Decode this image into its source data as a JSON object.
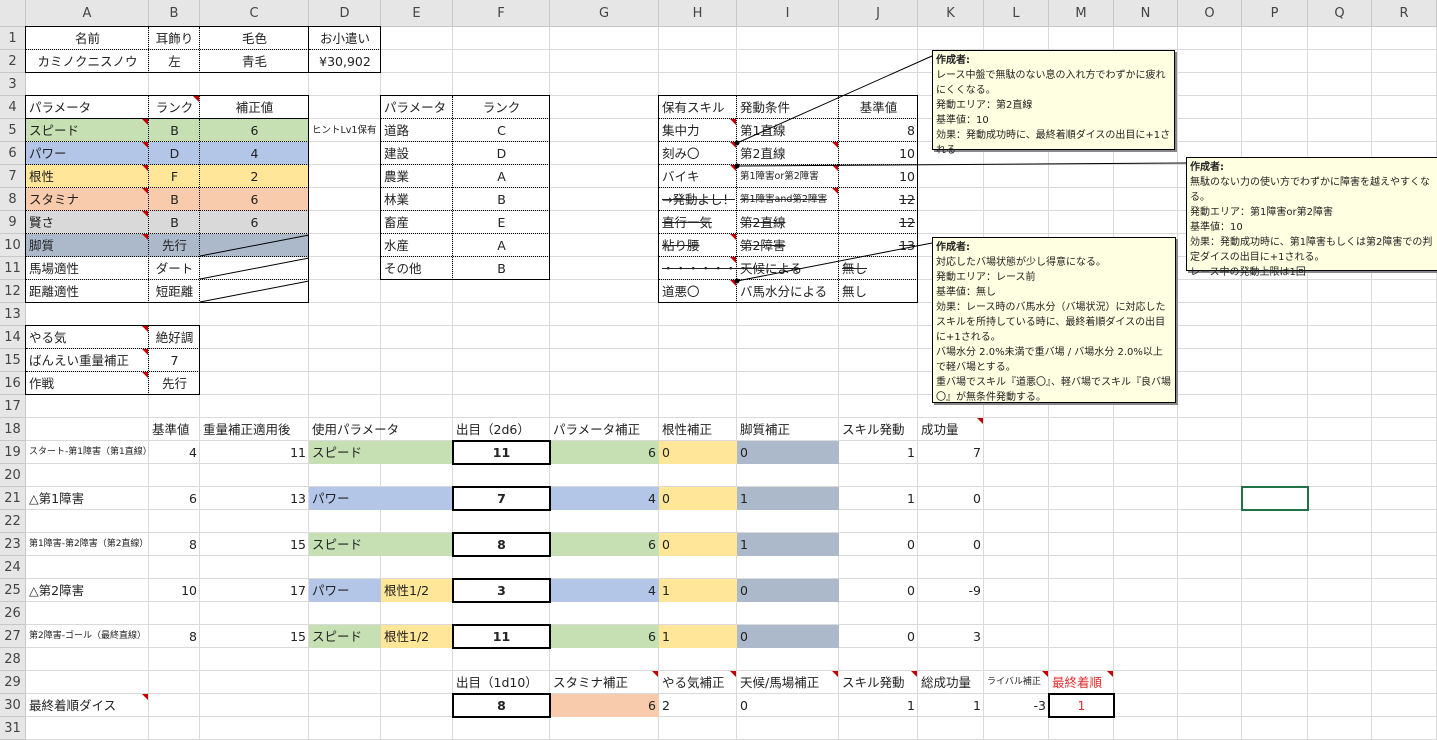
{
  "columns": [
    "A",
    "B",
    "C",
    "D",
    "E",
    "F",
    "G",
    "H",
    "I",
    "J",
    "K",
    "L",
    "M",
    "N",
    "O",
    "P",
    "Q",
    "R"
  ],
  "rows": 31,
  "fills": {
    "green": "#c6e0b4",
    "blue": "#b4c6e7",
    "yellow": "#ffe699",
    "orange": "#f8cbad",
    "gray": "#d9d9d9",
    "slate": "#acb9ca"
  },
  "selected_cell": "P21",
  "cells": [
    {
      "ref": "A1",
      "v": "名前"
    },
    {
      "ref": "B1",
      "v": "耳飾り"
    },
    {
      "ref": "C1",
      "v": "毛色"
    },
    {
      "ref": "D1",
      "v": "お小遣い"
    },
    {
      "ref": "A2",
      "v": "カミノクニスノウ"
    },
    {
      "ref": "B2",
      "v": "左"
    },
    {
      "ref": "C2",
      "v": "青毛"
    },
    {
      "ref": "D2",
      "v": "¥30,902"
    },
    {
      "ref": "A4",
      "v": "パラメータ"
    },
    {
      "ref": "B4",
      "v": "ランク"
    },
    {
      "ref": "C4",
      "v": "補正値"
    },
    {
      "ref": "A5",
      "v": "スピード",
      "fill": "green"
    },
    {
      "ref": "B5",
      "v": "B",
      "fill": "green"
    },
    {
      "ref": "C5",
      "v": "6",
      "fill": "green"
    },
    {
      "ref": "A6",
      "v": "パワー",
      "fill": "blue"
    },
    {
      "ref": "B6",
      "v": "D",
      "fill": "blue"
    },
    {
      "ref": "C6",
      "v": "4",
      "fill": "blue"
    },
    {
      "ref": "A7",
      "v": "根性",
      "fill": "yellow"
    },
    {
      "ref": "B7",
      "v": "F",
      "fill": "yellow"
    },
    {
      "ref": "C7",
      "v": "2",
      "fill": "yellow"
    },
    {
      "ref": "A8",
      "v": "スタミナ",
      "fill": "orange"
    },
    {
      "ref": "B8",
      "v": "B",
      "fill": "orange"
    },
    {
      "ref": "C8",
      "v": "6",
      "fill": "orange"
    },
    {
      "ref": "A9",
      "v": "賢さ",
      "fill": "gray"
    },
    {
      "ref": "B9",
      "v": "B",
      "fill": "gray"
    },
    {
      "ref": "C9",
      "v": "6",
      "fill": "gray"
    },
    {
      "ref": "A10",
      "v": "脚質",
      "fill": "slate"
    },
    {
      "ref": "B10",
      "v": "先行",
      "fill": "slate"
    },
    {
      "ref": "C10",
      "v": "",
      "fill": "slate"
    },
    {
      "ref": "A11",
      "v": "馬場適性"
    },
    {
      "ref": "B11",
      "v": "ダート"
    },
    {
      "ref": "A12",
      "v": "距離適性"
    },
    {
      "ref": "B12",
      "v": "短距離"
    },
    {
      "ref": "D5",
      "v": "ヒントLv1保有"
    },
    {
      "ref": "E4",
      "v": "パラメータ"
    },
    {
      "ref": "F4",
      "v": "ランク"
    },
    {
      "ref": "E5",
      "v": "道路"
    },
    {
      "ref": "F5",
      "v": "C"
    },
    {
      "ref": "E6",
      "v": "建設"
    },
    {
      "ref": "F6",
      "v": "D"
    },
    {
      "ref": "E7",
      "v": "農業"
    },
    {
      "ref": "F7",
      "v": "A"
    },
    {
      "ref": "E8",
      "v": "林業"
    },
    {
      "ref": "F8",
      "v": "B"
    },
    {
      "ref": "E9",
      "v": "畜産"
    },
    {
      "ref": "F9",
      "v": "E"
    },
    {
      "ref": "E10",
      "v": "水産"
    },
    {
      "ref": "F10",
      "v": "A"
    },
    {
      "ref": "E11",
      "v": "その他"
    },
    {
      "ref": "F11",
      "v": "B"
    },
    {
      "ref": "H4",
      "v": "保有スキル"
    },
    {
      "ref": "I4",
      "v": "発動条件"
    },
    {
      "ref": "J4",
      "v": "基準値"
    },
    {
      "ref": "H5",
      "v": "集中力"
    },
    {
      "ref": "I5",
      "v": "第1直線"
    },
    {
      "ref": "J5",
      "v": "8"
    },
    {
      "ref": "H6",
      "v": "刻み〇"
    },
    {
      "ref": "I6",
      "v": "第2直線"
    },
    {
      "ref": "J6",
      "v": "10"
    },
    {
      "ref": "H7",
      "v": "バイキ"
    },
    {
      "ref": "I7",
      "v": "第1障害or第2障害"
    },
    {
      "ref": "J7",
      "v": "10"
    },
    {
      "ref": "H8",
      "v": "→発動よし！",
      "strike": true
    },
    {
      "ref": "I8",
      "v": "第1障害and第2障害",
      "strike": true
    },
    {
      "ref": "J8",
      "v": "12",
      "strike": true
    },
    {
      "ref": "H9",
      "v": "直行一気",
      "strike": true
    },
    {
      "ref": "I9",
      "v": "第2直線",
      "strike": true
    },
    {
      "ref": "J9",
      "v": "12",
      "strike": true
    },
    {
      "ref": "H10",
      "v": "粘り腰",
      "strike": true
    },
    {
      "ref": "I10",
      "v": "第2障害",
      "strike": true
    },
    {
      "ref": "J10",
      "v": "13",
      "strike": true
    },
    {
      "ref": "H11",
      "v": "・・・・・・・",
      "strike": true
    },
    {
      "ref": "I11",
      "v": "天候による",
      "strike": true
    },
    {
      "ref": "J11",
      "v": "無し",
      "strike": true
    },
    {
      "ref": "H12",
      "v": "道悪〇"
    },
    {
      "ref": "I12",
      "v": "バ馬水分による"
    },
    {
      "ref": "J12",
      "v": "無し"
    },
    {
      "ref": "A14",
      "v": "やる気"
    },
    {
      "ref": "B14",
      "v": "絶好調"
    },
    {
      "ref": "A15",
      "v": "ばんえい重量補正"
    },
    {
      "ref": "B15",
      "v": "7"
    },
    {
      "ref": "A16",
      "v": "作戦"
    },
    {
      "ref": "B16",
      "v": "先行"
    },
    {
      "ref": "B18",
      "v": "基準値"
    },
    {
      "ref": "C18",
      "v": "重量補正適用後"
    },
    {
      "ref": "D18",
      "v": "使用パラメータ"
    },
    {
      "ref": "F18",
      "v": "出目（2d6）"
    },
    {
      "ref": "G18",
      "v": "パラメータ補正"
    },
    {
      "ref": "H18",
      "v": "根性補正"
    },
    {
      "ref": "I18",
      "v": "脚質補正"
    },
    {
      "ref": "J18",
      "v": "スキル発動"
    },
    {
      "ref": "K18",
      "v": "成功量"
    },
    {
      "ref": "A19",
      "v": "スタート-第1障害（第1直線）"
    },
    {
      "ref": "B19",
      "v": "4"
    },
    {
      "ref": "C19",
      "v": "11"
    },
    {
      "ref": "D19",
      "v": "スピード",
      "fill": "green",
      "span": 2
    },
    {
      "ref": "F19",
      "v": "11"
    },
    {
      "ref": "G19",
      "v": "6",
      "fill": "green"
    },
    {
      "ref": "H19",
      "v": "0",
      "fill": "yellow"
    },
    {
      "ref": "I19",
      "v": "0",
      "fill": "slate"
    },
    {
      "ref": "J19",
      "v": "1"
    },
    {
      "ref": "K19",
      "v": "7"
    },
    {
      "ref": "A21",
      "v": "△第1障害"
    },
    {
      "ref": "B21",
      "v": "6"
    },
    {
      "ref": "C21",
      "v": "13"
    },
    {
      "ref": "D21",
      "v": "パワー",
      "fill": "blue",
      "span": 2
    },
    {
      "ref": "F21",
      "v": "7"
    },
    {
      "ref": "G21",
      "v": "4",
      "fill": "blue"
    },
    {
      "ref": "H21",
      "v": "0",
      "fill": "yellow"
    },
    {
      "ref": "I21",
      "v": "1",
      "fill": "slate"
    },
    {
      "ref": "J21",
      "v": "1"
    },
    {
      "ref": "K21",
      "v": "0"
    },
    {
      "ref": "A23",
      "v": "第1障害-第2障害（第2直線）"
    },
    {
      "ref": "B23",
      "v": "8"
    },
    {
      "ref": "C23",
      "v": "15"
    },
    {
      "ref": "D23",
      "v": "スピード",
      "fill": "green",
      "span": 2
    },
    {
      "ref": "F23",
      "v": "8"
    },
    {
      "ref": "G23",
      "v": "6",
      "fill": "green"
    },
    {
      "ref": "H23",
      "v": "0",
      "fill": "yellow"
    },
    {
      "ref": "I23",
      "v": "1",
      "fill": "slate"
    },
    {
      "ref": "J23",
      "v": "0"
    },
    {
      "ref": "K23",
      "v": "0"
    },
    {
      "ref": "A25",
      "v": "△第2障害"
    },
    {
      "ref": "B25",
      "v": "10"
    },
    {
      "ref": "C25",
      "v": "17"
    },
    {
      "ref": "D25",
      "v": "パワー",
      "fill": "blue"
    },
    {
      "ref": "E25",
      "v": "根性1/2",
      "fill": "yellow"
    },
    {
      "ref": "F25",
      "v": "3"
    },
    {
      "ref": "G25",
      "v": "4",
      "fill": "blue"
    },
    {
      "ref": "H25",
      "v": "1",
      "fill": "yellow"
    },
    {
      "ref": "I25",
      "v": "0",
      "fill": "slate"
    },
    {
      "ref": "J25",
      "v": "0"
    },
    {
      "ref": "K25",
      "v": "-9"
    },
    {
      "ref": "A27",
      "v": "第2障害-ゴール（最終直線）"
    },
    {
      "ref": "B27",
      "v": "8"
    },
    {
      "ref": "C27",
      "v": "15"
    },
    {
      "ref": "D27",
      "v": "スピード",
      "fill": "green"
    },
    {
      "ref": "E27",
      "v": "根性1/2",
      "fill": "yellow"
    },
    {
      "ref": "F27",
      "v": "11"
    },
    {
      "ref": "G27",
      "v": "6",
      "fill": "green"
    },
    {
      "ref": "H27",
      "v": "1",
      "fill": "yellow"
    },
    {
      "ref": "I27",
      "v": "0",
      "fill": "slate"
    },
    {
      "ref": "J27",
      "v": "0"
    },
    {
      "ref": "K27",
      "v": "3"
    },
    {
      "ref": "F29",
      "v": "出目（1d10）"
    },
    {
      "ref": "G29",
      "v": "スタミナ補正"
    },
    {
      "ref": "H29",
      "v": "やる気補正"
    },
    {
      "ref": "I29",
      "v": "天候/馬場補正"
    },
    {
      "ref": "J29",
      "v": "スキル発動"
    },
    {
      "ref": "K29",
      "v": "総成功量"
    },
    {
      "ref": "L29",
      "v": "ライバル補正"
    },
    {
      "ref": "M29",
      "v": "最終着順"
    },
    {
      "ref": "A30",
      "v": "最終着順ダイス"
    },
    {
      "ref": "F30",
      "v": "8"
    },
    {
      "ref": "G30",
      "v": "6",
      "fill": "orange"
    },
    {
      "ref": "H30",
      "v": "2"
    },
    {
      "ref": "I30",
      "v": "0"
    },
    {
      "ref": "J30",
      "v": "1"
    },
    {
      "ref": "K30",
      "v": "1"
    },
    {
      "ref": "L30",
      "v": "-3"
    },
    {
      "ref": "M30",
      "v": "1"
    }
  ],
  "comments": [
    {
      "author": "作成者:",
      "text": "レース中盤で無駄のない息の入れ方でわずかに疲れにくくなる。\n発動エリア：第2直線\n基準値：10\n効果：発動成功時に、最終着順ダイスの出目に+1される",
      "target": "H6"
    },
    {
      "author": "作成者:",
      "text": "無駄のない力の使い方でわずかに障害を越えやすくなる。\n発動エリア：第1障害or第2障害\n基準値：10\n効果：発動成功時に、第1障害もしくは第2障害での判定ダイスの出目に+1される。\nレース中の発動上限は1回",
      "target": "H7"
    },
    {
      "author": "作成者:",
      "text": "対応したバ場状態が少し得意になる。\n発動エリア：レース前\n基準値：無し\n効果：レース時のバ馬水分（バ場状況）に対応したスキルを所持している時に、最終着順ダイスの出目に+1される。\nバ場水分 2.0%未満で重バ場 / バ場水分 2.0%以上で軽バ場とする。\n重バ場でスキル『道悪〇』、軽バ場でスキル『良バ場〇』が無条件発動する。",
      "target": "H12"
    }
  ]
}
